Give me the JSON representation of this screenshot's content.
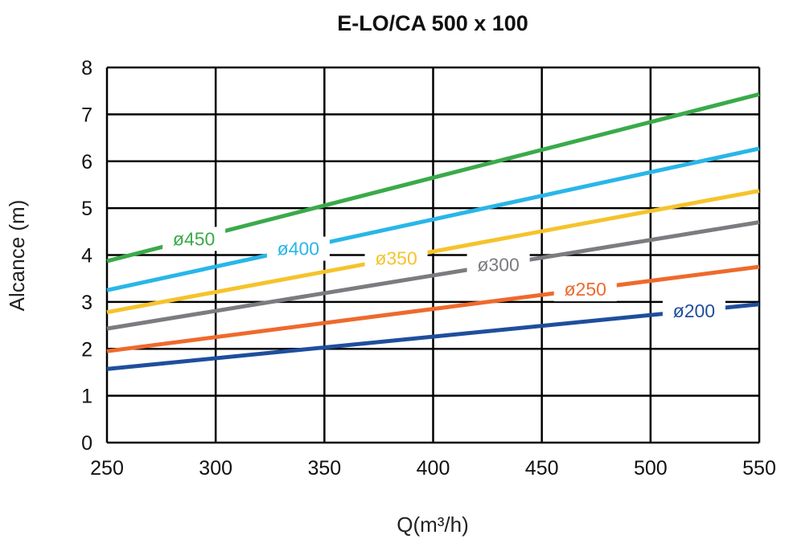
{
  "chart_data": {
    "type": "line",
    "title": "E-LO/CA 500 x 100",
    "xlabel": "Q(m³/h)",
    "ylabel": "Alcance (m)",
    "xlim": [
      250,
      550
    ],
    "ylim": [
      0,
      8
    ],
    "xticks": [
      250,
      300,
      350,
      400,
      450,
      500,
      550
    ],
    "yticks": [
      0,
      1,
      2,
      3,
      4,
      5,
      6,
      7,
      8
    ],
    "grid": true,
    "legend": "inline labels on lines",
    "series": [
      {
        "name": "ø450",
        "color": "#3aaa4a",
        "x": [
          250,
          550
        ],
        "y": [
          3.87,
          7.43
        ],
        "label_x": 290
      },
      {
        "name": "ø400",
        "color": "#29b6e8",
        "x": [
          250,
          550
        ],
        "y": [
          3.25,
          6.27
        ],
        "label_x": 338
      },
      {
        "name": "ø350",
        "color": "#f5c32c",
        "x": [
          250,
          550
        ],
        "y": [
          2.78,
          5.37
        ],
        "label_x": 383
      },
      {
        "name": "ø300",
        "color": "#7a7c7f",
        "x": [
          250,
          550
        ],
        "y": [
          2.43,
          4.7
        ],
        "label_x": 430
      },
      {
        "name": "ø250",
        "color": "#ee6a2c",
        "x": [
          250,
          550
        ],
        "y": [
          1.95,
          3.75
        ],
        "label_x": 470
      },
      {
        "name": "ø200",
        "color": "#1f4e9c",
        "x": [
          250,
          550
        ],
        "y": [
          1.57,
          2.95
        ],
        "label_x": 520
      }
    ]
  }
}
